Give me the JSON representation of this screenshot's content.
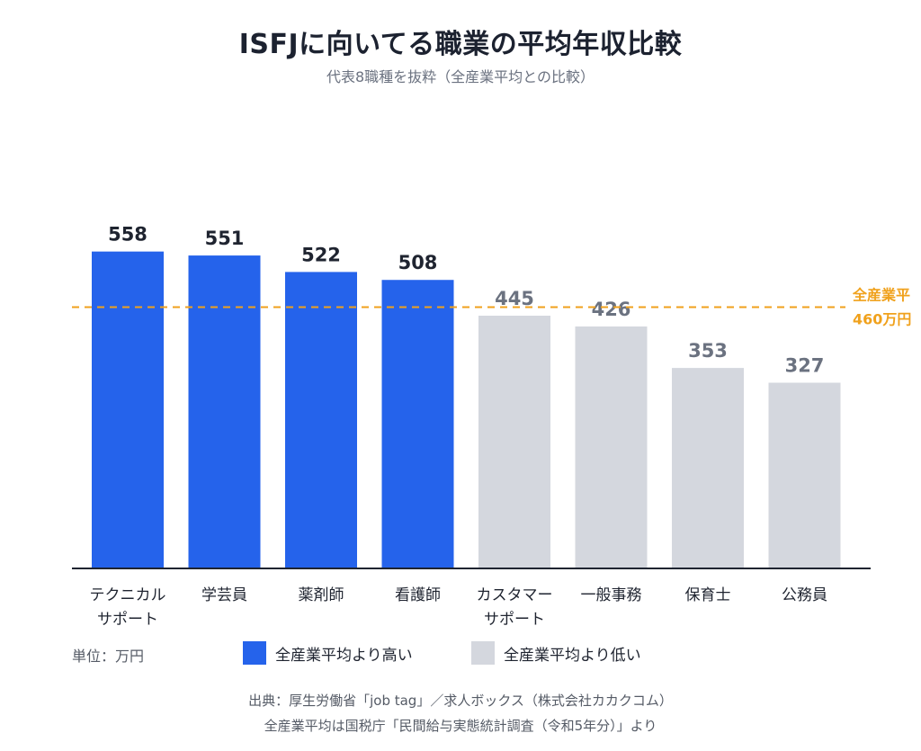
{
  "header": {
    "title": "ISFJに向いてる職業の平均年収比較",
    "subtitle": "代表8職種を抜粋（全産業平均との比較）"
  },
  "chart_data": {
    "type": "bar",
    "categories": [
      [
        "テクニカル",
        "サポート"
      ],
      [
        "学芸員"
      ],
      [
        "薬剤師"
      ],
      [
        "看護師"
      ],
      [
        "カスタマー",
        "サポート"
      ],
      [
        "一般事務"
      ],
      [
        "保育士"
      ],
      [
        "公務員"
      ]
    ],
    "values": [
      558,
      551,
      522,
      508,
      445,
      426,
      353,
      327
    ],
    "groups": [
      "above",
      "above",
      "above",
      "above",
      "below",
      "below",
      "below",
      "below"
    ],
    "reference_line": {
      "value": 460,
      "label_lines": [
        "全産業平",
        "460万円"
      ],
      "color": "#f0a11c",
      "style": "dashed"
    },
    "colors": {
      "above": "#2563eb",
      "below": "#d4d7de",
      "label_above": "#1f2430",
      "label_below": "#6b7280"
    },
    "ylim": [
      0,
      700
    ],
    "grid": false
  },
  "legend": {
    "unit": "単位：万円",
    "items": [
      {
        "label": "全産業平均より高い",
        "color": "#2563eb"
      },
      {
        "label": "全産業平均より低い",
        "color": "#d4d7de"
      }
    ]
  },
  "footer": {
    "line1": "出典：厚生労働省「job tag」／求人ボックス（株式会社カカクコム）",
    "line2": "全産業平均は国税庁「民間給与実態統計調査（令和5年分）」より"
  }
}
